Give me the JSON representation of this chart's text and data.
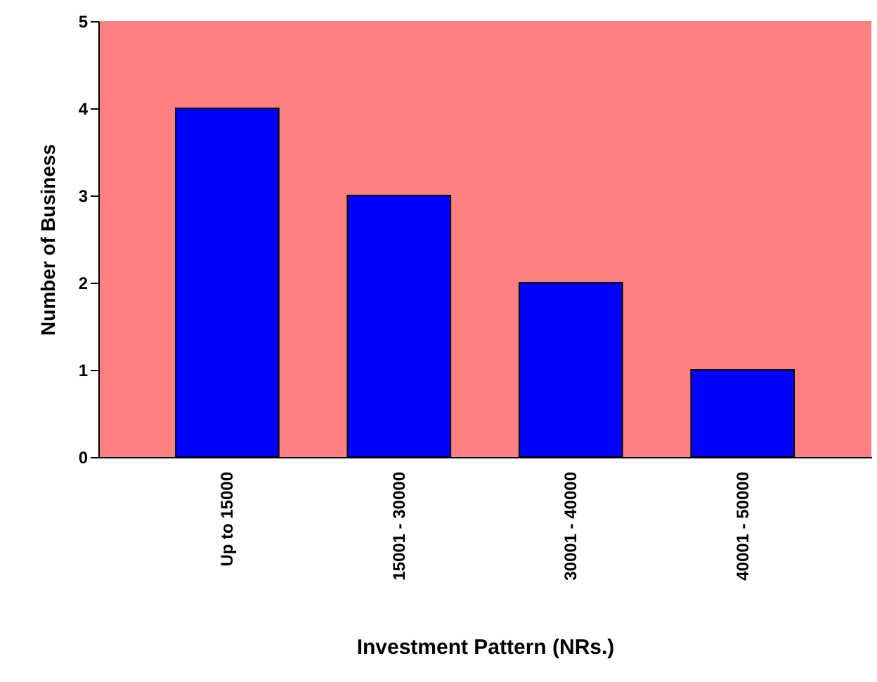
{
  "chart_data": {
    "type": "bar",
    "xlabel": "Investment Pattern (NRs.)",
    "ylabel": "Number of Business",
    "categories": [
      "Up to 15000",
      "15001 - 30000",
      "30001 - 40000",
      "40001 - 50000"
    ],
    "values": [
      4,
      3,
      2,
      1
    ],
    "color": "#0000ff",
    "ylim": [
      0,
      5
    ],
    "yticks": [
      0,
      1,
      2,
      3,
      4,
      5
    ],
    "grid": false
  }
}
